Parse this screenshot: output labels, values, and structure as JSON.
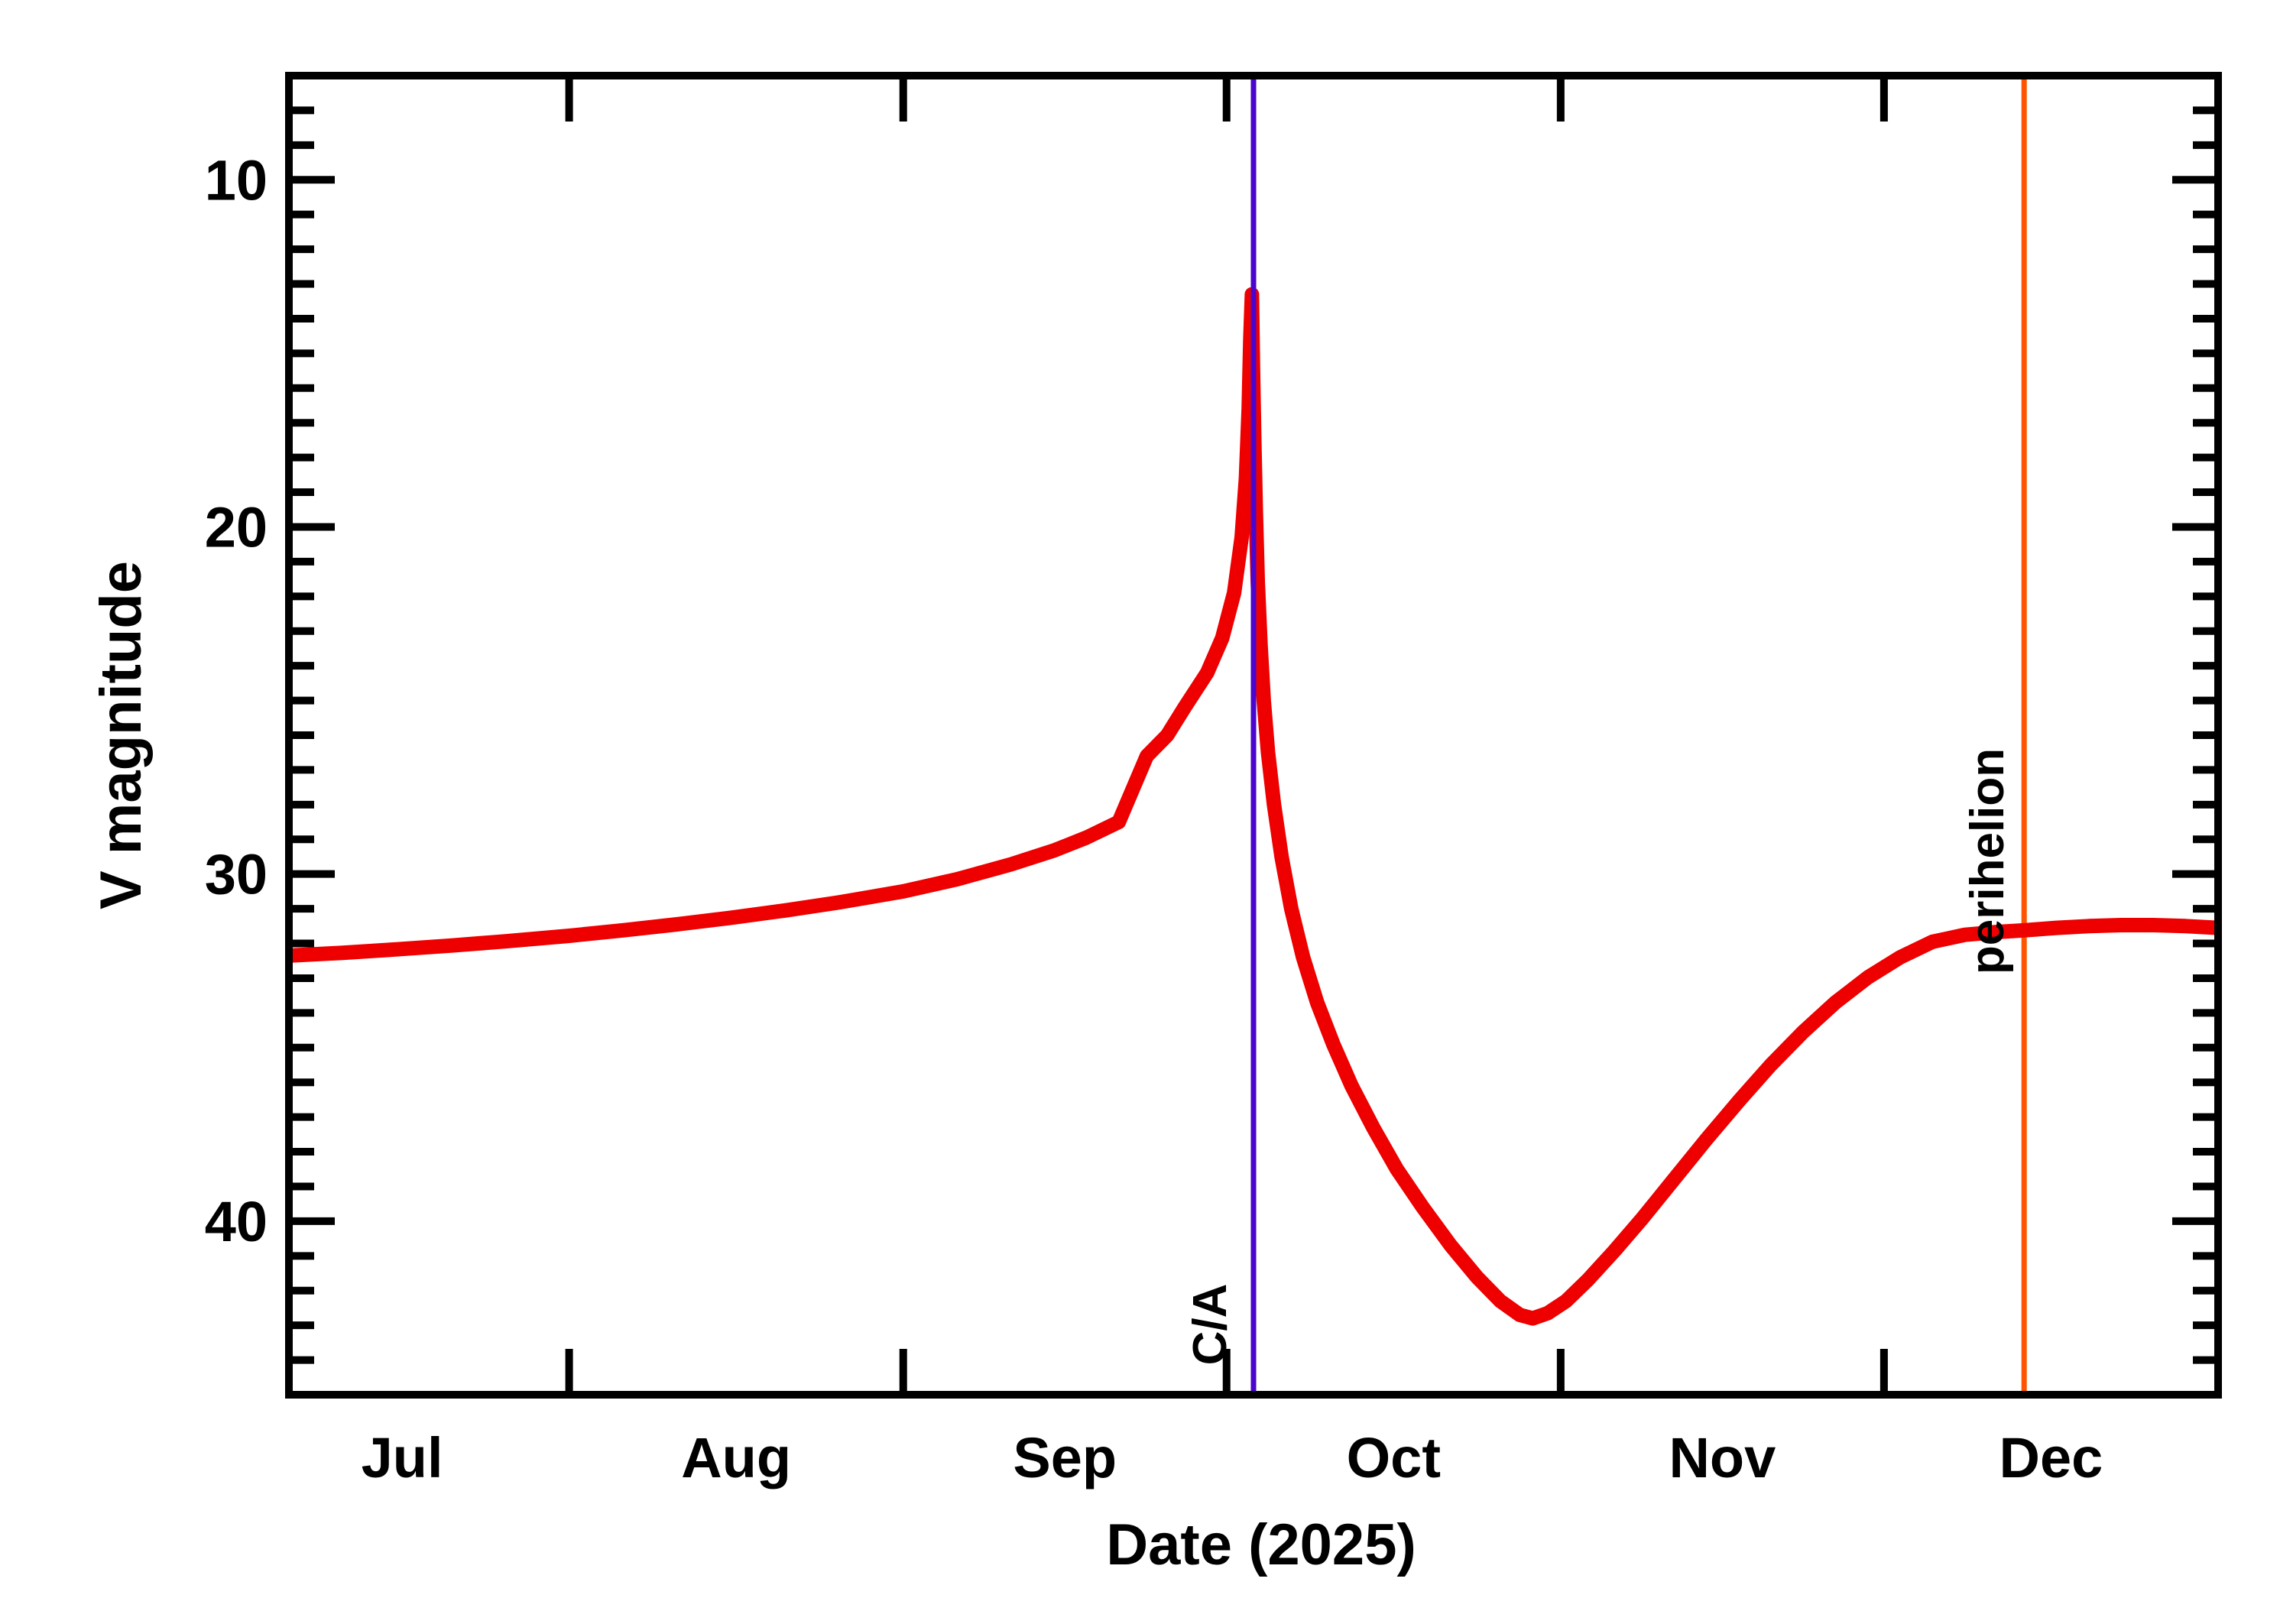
{
  "figure": {
    "background_color": "#ffffff",
    "xlabel": "Date (2025)",
    "ylabel": "V magnitude"
  },
  "chart_data": {
    "type": "line",
    "title": "",
    "xlabel": "Date (2025)",
    "ylabel": "V magnitude",
    "grid": false,
    "legend": "none",
    "x_axis": {
      "unit": "day_of_year_2025",
      "range_doy": [
        187,
        366
      ],
      "range_dates": [
        "2025-07-06",
        "2026-01-01"
      ],
      "month_tick_doys": [
        213,
        244,
        274,
        305,
        335,
        366
      ],
      "month_labels": [
        {
          "label": "Jul",
          "center_doy": 197.5
        },
        {
          "label": "Aug",
          "center_doy": 228.5
        },
        {
          "label": "Sep",
          "center_doy": 259.0
        },
        {
          "label": "Oct",
          "center_doy": 289.5
        },
        {
          "label": "Nov",
          "center_doy": 320.0
        },
        {
          "label": "Dec",
          "center_doy": 350.5
        }
      ]
    },
    "y_axis": {
      "label": "V magnitude",
      "range": [
        7,
        45
      ],
      "inverted": true,
      "major_ticks": [
        10,
        20,
        30,
        40
      ],
      "minor_tick_step": 1
    },
    "series": [
      {
        "name": "predicted-v-magnitude",
        "color": "#ee0000",
        "stroke_px": 19,
        "points_doy_mag": [
          [
            187,
            32.35
          ],
          [
            192,
            32.27
          ],
          [
            197,
            32.17
          ],
          [
            202,
            32.06
          ],
          [
            207,
            31.94
          ],
          [
            213,
            31.78
          ],
          [
            218,
            31.62
          ],
          [
            223,
            31.45
          ],
          [
            228,
            31.26
          ],
          [
            233,
            31.05
          ],
          [
            238,
            30.82
          ],
          [
            244,
            30.5
          ],
          [
            249,
            30.15
          ],
          [
            254,
            29.72
          ],
          [
            258,
            29.32
          ],
          [
            261,
            28.95
          ],
          [
            264,
            28.5
          ],
          [
            266.6,
            26.6
          ],
          [
            268.5,
            26.0
          ],
          [
            270.1,
            25.2
          ],
          [
            272.2,
            24.2
          ],
          [
            273.6,
            23.2
          ],
          [
            274.7,
            21.9
          ],
          [
            275.4,
            20.3
          ],
          [
            275.8,
            18.6
          ],
          [
            276.05,
            16.6
          ],
          [
            276.2,
            14.6
          ],
          [
            276.35,
            13.3
          ],
          [
            276.45,
            15.4
          ],
          [
            276.58,
            17.6
          ],
          [
            276.72,
            19.6
          ],
          [
            276.9,
            21.6
          ],
          [
            277.15,
            23.4
          ],
          [
            277.45,
            25.0
          ],
          [
            277.85,
            26.5
          ],
          [
            278.4,
            28.0
          ],
          [
            279.1,
            29.5
          ],
          [
            280,
            31.0
          ],
          [
            281.1,
            32.4
          ],
          [
            282.4,
            33.7
          ],
          [
            283.9,
            34.9
          ],
          [
            285.6,
            36.1
          ],
          [
            287.6,
            37.3
          ],
          [
            289.8,
            38.5
          ],
          [
            292.2,
            39.6
          ],
          [
            294.8,
            40.7
          ],
          [
            297.2,
            41.6
          ],
          [
            299.4,
            42.3
          ],
          [
            301.2,
            42.7
          ],
          [
            302.4,
            42.8
          ],
          [
            303.8,
            42.65
          ],
          [
            305.5,
            42.3
          ],
          [
            307.5,
            41.7
          ],
          [
            310,
            40.85
          ],
          [
            312.5,
            39.95
          ],
          [
            315.5,
            38.8
          ],
          [
            318.5,
            37.65
          ],
          [
            321.5,
            36.55
          ],
          [
            324.5,
            35.5
          ],
          [
            327.5,
            34.55
          ],
          [
            330.5,
            33.7
          ],
          [
            333.5,
            32.98
          ],
          [
            336.5,
            32.4
          ],
          [
            339.5,
            31.95
          ],
          [
            342.5,
            31.75
          ],
          [
            345.5,
            31.67
          ],
          [
            348,
            31.62
          ],
          [
            351,
            31.55
          ],
          [
            354,
            31.5
          ],
          [
            357,
            31.47
          ],
          [
            360,
            31.47
          ],
          [
            363,
            31.5
          ],
          [
            366,
            31.55
          ]
        ]
      }
    ],
    "events": [
      {
        "label": "C/A",
        "doy": 276.5,
        "date": "2025-10-03",
        "color": "#4a06ce"
      },
      {
        "label": "perihelion",
        "doy": 348.0,
        "date": "2025-12-14",
        "color": "#ff5500"
      }
    ],
    "extremes": {
      "brightest_mag": 13.3,
      "brightest_doy": 276.35,
      "faintest_mag": 42.8,
      "faintest_doy": 302.4
    }
  }
}
